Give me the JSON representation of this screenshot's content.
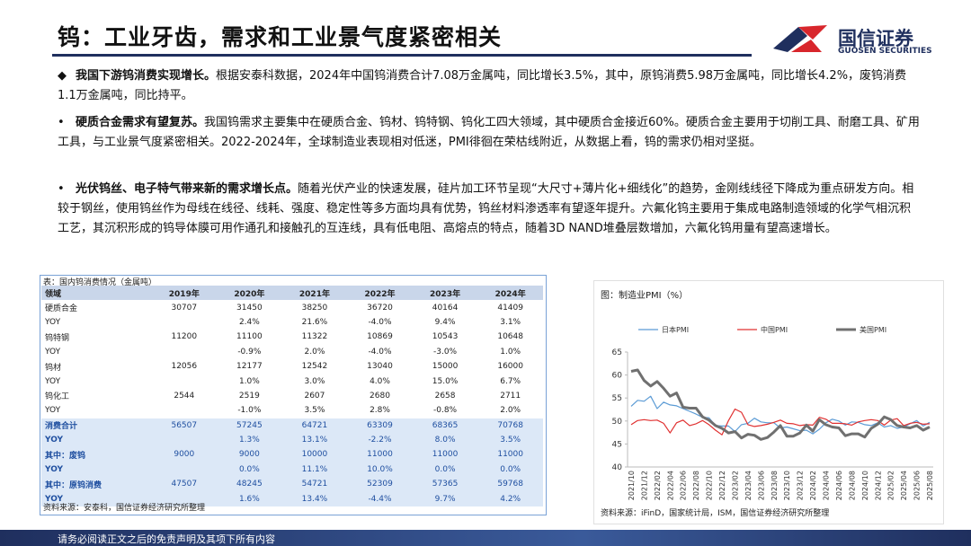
{
  "header": {
    "title": "钨：工业牙齿，需求和工业景气度紧密相关",
    "logo_cn": "国信证券",
    "logo_en": "GUOSEN SECURITIES"
  },
  "bullets": [
    {
      "marker": "◆",
      "lead": "我国下游钨消费实现增长。",
      "body": "根据安泰科数据，2024年中国钨消费合计7.08万金属吨，同比增长3.5%，其中，原钨消费5.98万金属吨，同比增长4.2%，废钨消费1.1万金属吨，同比持平。"
    },
    {
      "marker": "•",
      "lead": "硬质合金需求有望复苏。",
      "body": "我国钨需求主要集中在硬质合金、钨材、钨特钢、钨化工四大领域，其中硬质合金接近60%。硬质合金主要用于切削工具、耐磨工具、矿用工具，与工业景气度紧密相关。2022-2024年，全球制造业表现相对低迷，PMI徘徊在荣枯线附近，从数据上看，钨的需求仍相对坚挺。"
    },
    {
      "marker": "•",
      "lead": "光伏钨丝、电子特气带来新的需求增长点。",
      "body": "随着光伏产业的快速发展，硅片加工环节呈现“大尺寸+薄片化+细线化”的趋势，金刚线线径下降成为重点研发方向。相较于钢丝，使用钨丝作为母线在线径、线耗、强度、稳定性等多方面均具有优势，钨丝材料渗透率有望逐年提升。六氟化钨主要用于集成电路制造领域的化学气相沉积工艺，其沉积形成的钨导体膜可用作通孔和接触孔的互连线，具有低电阻、高熔点的特点，随着3D NAND堆叠层数增加，六氟化钨用量有望高速增长。"
    }
  ],
  "table": {
    "caption": "表：国内钨消费情况（金属吨）",
    "header": [
      "领域",
      "2019年",
      "2020年",
      "2021年",
      "2022年",
      "2023年",
      "2024年"
    ],
    "rows": [
      [
        "硬质合金",
        "30707",
        "31450",
        "38250",
        "36720",
        "40164",
        "41409"
      ],
      [
        "YOY",
        null,
        "2.4%",
        "21.6%",
        "-4.0%",
        "9.4%",
        "3.1%"
      ],
      [
        "钨特钢",
        "11200",
        "11100",
        "11322",
        "10869",
        "10543",
        "10648"
      ],
      [
        "YOY",
        null,
        "-0.9%",
        "2.0%",
        "-4.0%",
        "-3.0%",
        "1.0%"
      ],
      [
        "钨材",
        "12056",
        "12177",
        "12542",
        "13040",
        "15000",
        "16000"
      ],
      [
        "YOY",
        null,
        "1.0%",
        "3.0%",
        "4.0%",
        "15.0%",
        "6.7%"
      ],
      [
        "钨化工",
        "2544",
        "2519",
        "2607",
        "2680",
        "2658",
        "2711"
      ],
      [
        "YOY",
        null,
        "-1.0%",
        "3.5%",
        "2.8%",
        "-0.8%",
        "2.0%"
      ],
      [
        "消费合计",
        "56507",
        "57245",
        "64721",
        "63309",
        "68365",
        "70768"
      ],
      [
        "YOY",
        null,
        "1.3%",
        "13.1%",
        "-2.2%",
        "8.0%",
        "3.5%"
      ],
      [
        "其中：废钨",
        "9000",
        "9000",
        "10000",
        "11000",
        "11000",
        "11000"
      ],
      [
        "YOY",
        null,
        "0.0%",
        "11.1%",
        "10.0%",
        "0.0%",
        "0.0%"
      ],
      [
        "其中：原钨消费",
        "47507",
        "48245",
        "54721",
        "52309",
        "57365",
        "59768"
      ],
      [
        "YOY",
        null,
        "1.6%",
        "13.4%",
        "-4.4%",
        "9.7%",
        "4.2%"
      ]
    ],
    "highlight_from_row": 8,
    "source": "资料来源：安泰科，国信证券经济研究所整理"
  },
  "chart_data": {
    "type": "line",
    "title": "图：制造业PMI（%）",
    "legend": "top",
    "x": [
      "2021/10",
      null,
      "2021/12",
      null,
      "2022/02",
      null,
      "2022/04",
      null,
      "2022/06",
      null,
      "2022/08",
      null,
      "2022/10",
      null,
      "2022/12",
      null,
      "2023/02",
      null,
      "2023/04",
      null,
      "2023/06",
      null,
      "2023/08",
      null,
      "2023/10",
      null,
      "2023/12",
      null,
      "2024/02",
      null,
      "2024/04",
      null,
      "2024/06",
      null,
      "2024/08",
      null,
      "2024/10",
      null,
      "2024/12",
      null,
      "2025/02",
      null,
      "2025/04",
      null,
      "2025/06",
      null,
      "2025/08"
    ],
    "series": [
      {
        "name": "日本PMI",
        "color": "#5b9bd5",
        "width": 1.2,
        "values": [
          53.2,
          54.5,
          54.3,
          55.4,
          52.7,
          54.1,
          53.5,
          53.3,
          52.7,
          52.1,
          51.5,
          50.8,
          50.7,
          49.0,
          48.9,
          48.9,
          47.7,
          49.2,
          49.5,
          50.6,
          49.8,
          49.6,
          49.6,
          48.5,
          48.7,
          48.3,
          47.9,
          48.0,
          47.2,
          48.2,
          49.6,
          50.4,
          50.0,
          49.1,
          49.8,
          49.7,
          49.2,
          49.0,
          49.6,
          48.7,
          49.0,
          48.4,
          48.7,
          49.4,
          50.1,
          48.9,
          49.7
        ]
      },
      {
        "name": "中国PMI",
        "color": "#e03030",
        "width": 1.2,
        "values": [
          49.2,
          50.1,
          50.3,
          50.1,
          50.2,
          49.5,
          47.4,
          49.6,
          50.2,
          49.0,
          49.4,
          50.1,
          49.2,
          48.0,
          47.0,
          50.1,
          52.6,
          51.9,
          49.2,
          48.8,
          49.0,
          49.3,
          49.7,
          50.2,
          49.5,
          49.4,
          49.0,
          49.2,
          49.1,
          50.8,
          50.4,
          49.5,
          49.5,
          49.4,
          49.1,
          49.8,
          50.1,
          50.3,
          50.1,
          49.1,
          50.2,
          50.5,
          49.0,
          49.5,
          49.7,
          49.3,
          49.4
        ]
      },
      {
        "name": "美国PMI",
        "color": "#707070",
        "width": 3,
        "values": [
          60.8,
          61.1,
          58.8,
          57.6,
          58.6,
          57.1,
          55.4,
          56.1,
          53.0,
          52.8,
          52.8,
          50.9,
          50.2,
          49.0,
          48.4,
          47.4,
          47.7,
          46.3,
          47.1,
          46.9,
          46.0,
          46.4,
          47.6,
          49.0,
          46.7,
          46.7,
          47.4,
          49.1,
          47.8,
          50.3,
          49.2,
          48.7,
          48.5,
          46.8,
          47.2,
          47.2,
          46.5,
          48.4,
          49.3,
          50.9,
          50.3,
          49.0,
          48.7,
          48.5,
          49.0,
          48.0,
          48.7
        ]
      }
    ],
    "ylim": [
      40,
      65
    ],
    "yticks": [
      40,
      45,
      50,
      55,
      60,
      65
    ],
    "grid": false,
    "source": "资料来源：iFinD，国家统计局，ISM，国信证券经济研究所整理"
  },
  "footer": "请务必阅读正文之后的免责声明及其项下所有内容"
}
